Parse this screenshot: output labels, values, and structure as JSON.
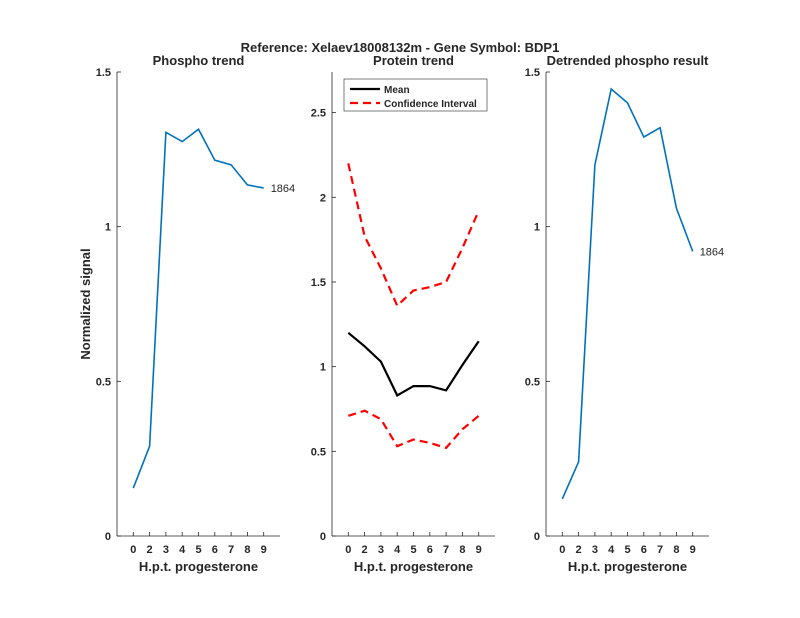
{
  "suptitle": "Reference:  Xelaev18008132m - Gene Symbol:  BDP1",
  "chart_data": [
    {
      "type": "line",
      "title": "Phospho trend",
      "xlabel": "H.p.t. progesterone",
      "ylabel": "Normalized signal",
      "categories": [
        "0",
        "2",
        "3",
        "4",
        "5",
        "6",
        "7",
        "8",
        "9"
      ],
      "ylim": [
        0,
        1.5
      ],
      "yticks": [
        "0",
        "0.5",
        "1",
        "1.5"
      ],
      "series": [
        {
          "name": "1864",
          "color": "#0072BD",
          "style": "solid",
          "values": [
            0.155,
            0.29,
            1.305,
            1.275,
            1.315,
            1.215,
            1.2,
            1.135,
            1.125
          ]
        }
      ],
      "end_label": "1864"
    },
    {
      "type": "line",
      "title": "Protein trend",
      "xlabel": "H.p.t. progesterone",
      "ylabel": "",
      "categories": [
        "0",
        "2",
        "3",
        "4",
        "5",
        "6",
        "7",
        "8",
        "9"
      ],
      "ylim": [
        0,
        2.74
      ],
      "yticks": [
        "0",
        "0.5",
        "1",
        "1.5",
        "2",
        "2.5"
      ],
      "legend": {
        "placement": "top",
        "entries": [
          "Mean",
          "Confidence Interval"
        ]
      },
      "series": [
        {
          "name": "Mean",
          "color": "#000000",
          "style": "solid",
          "values": [
            1.2,
            1.12,
            1.03,
            0.83,
            0.885,
            0.885,
            0.86,
            1.01,
            1.15
          ]
        },
        {
          "name": "Confidence Interval (upper)",
          "color": "#FF0000",
          "style": "dashed",
          "values": [
            2.2,
            1.77,
            1.58,
            1.36,
            1.45,
            1.47,
            1.5,
            1.7,
            1.92
          ]
        },
        {
          "name": "Confidence Interval (lower)",
          "color": "#FF0000",
          "style": "dashed",
          "values": [
            0.71,
            0.74,
            0.69,
            0.53,
            0.57,
            0.55,
            0.52,
            0.63,
            0.71
          ]
        }
      ]
    },
    {
      "type": "line",
      "title": "Detrended phospho result",
      "xlabel": "H.p.t. progesterone",
      "ylabel": "",
      "categories": [
        "0",
        "2",
        "3",
        "4",
        "5",
        "6",
        "7",
        "8",
        "9"
      ],
      "ylim": [
        0,
        1.5
      ],
      "yticks": [
        "0",
        "0.5",
        "1",
        "1.5"
      ],
      "series": [
        {
          "name": "1864",
          "color": "#0072BD",
          "style": "solid",
          "values": [
            0.12,
            0.24,
            1.2,
            1.445,
            1.4,
            1.29,
            1.32,
            1.06,
            0.92
          ]
        }
      ],
      "end_label": "1864"
    }
  ]
}
